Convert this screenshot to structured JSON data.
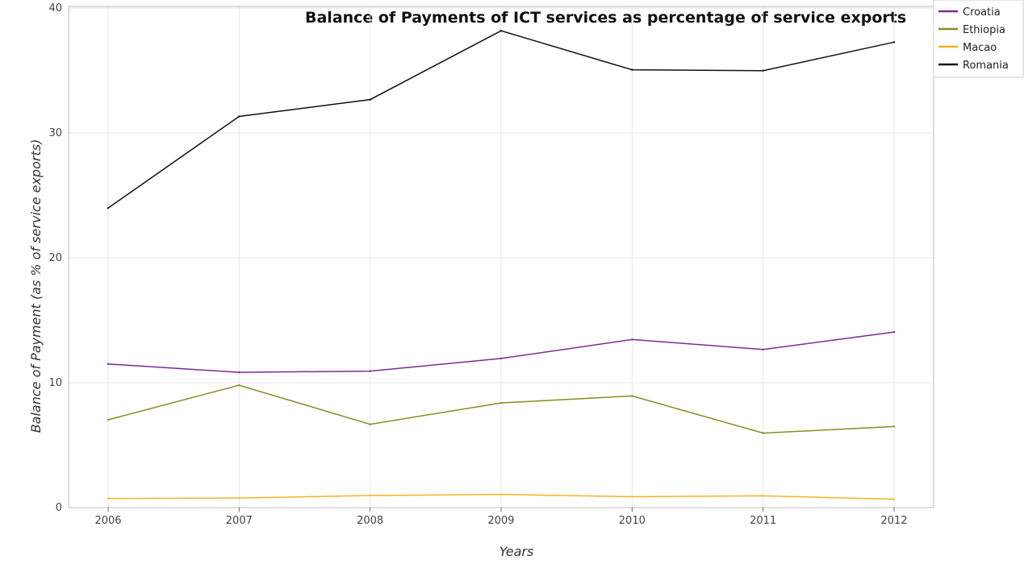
{
  "chart_data": {
    "type": "line",
    "title": "Balance of Payments of ICT services as percentage of service exports",
    "xlabel": "Years",
    "ylabel": "Balance of Payment (as % of service exports)",
    "categories": [
      "2006",
      "2007",
      "2008",
      "2009",
      "2010",
      "2011",
      "2012"
    ],
    "ylim": [
      0,
      40
    ],
    "yticks": [
      "0",
      "10",
      "20",
      "30",
      "40"
    ],
    "grid": true,
    "legend_position": "top-right",
    "series": [
      {
        "name": "Croatia",
        "color": "#7b2c8f",
        "values": [
          11.5,
          10.83,
          10.93,
          11.94,
          13.46,
          12.66,
          14.06
        ]
      },
      {
        "name": "Ethiopia",
        "color": "#8b8b1f",
        "values": [
          7.03,
          9.8,
          6.67,
          8.38,
          8.94,
          5.97,
          6.49
        ]
      },
      {
        "name": "Macao",
        "color": "#f4b324",
        "values": [
          0.73,
          0.77,
          0.97,
          1.06,
          0.87,
          0.94,
          0.67
        ]
      },
      {
        "name": "Romania",
        "color": "#111111",
        "values": [
          23.99,
          31.32,
          32.67,
          38.18,
          35.06,
          34.99,
          37.27
        ]
      }
    ]
  }
}
